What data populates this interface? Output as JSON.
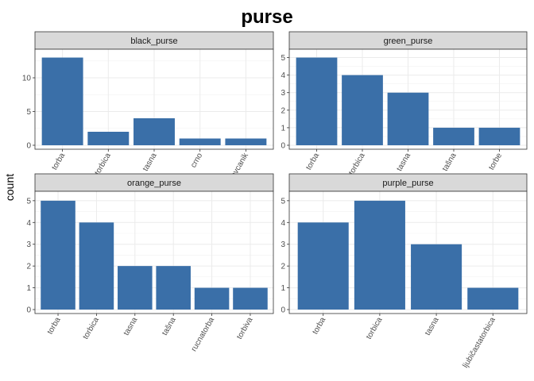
{
  "chart_data": {
    "type": "bar",
    "title": "purse",
    "xlabel": "",
    "ylabel": "count",
    "bar_color": "#3A6FA8",
    "strip_fill": "#D9D9D9",
    "grid": true,
    "facets": [
      {
        "name": "black_purse",
        "categories": [
          "torba",
          "torbica",
          "tasna",
          "crno",
          "novcanik"
        ],
        "values": [
          13,
          2,
          4,
          1,
          1
        ],
        "ylim": [
          0,
          13.65
        ],
        "yticks": [
          0,
          5,
          10
        ]
      },
      {
        "name": "green_purse",
        "categories": [
          "torba",
          "torbica",
          "tasna",
          "tašna",
          "torbe"
        ],
        "values": [
          5,
          4,
          3,
          1,
          1
        ],
        "ylim": [
          0,
          5.25
        ],
        "yticks": [
          0,
          1,
          2,
          3,
          4,
          5
        ]
      },
      {
        "name": "orange_purse",
        "categories": [
          "torba",
          "torbica",
          "tasna",
          "tašna",
          "rucnatorba",
          "torbiva"
        ],
        "values": [
          5,
          4,
          2,
          2,
          1,
          1
        ],
        "ylim": [
          0,
          5.25
        ],
        "yticks": [
          0,
          1,
          2,
          3,
          4,
          5
        ]
      },
      {
        "name": "purple_purse",
        "categories": [
          "torba",
          "torbica",
          "tasna",
          "ljubičastatorbica"
        ],
        "values": [
          4,
          5,
          3,
          1
        ],
        "ylim": [
          0,
          5.25
        ],
        "yticks": [
          0,
          1,
          2,
          3,
          4,
          5
        ]
      }
    ]
  }
}
